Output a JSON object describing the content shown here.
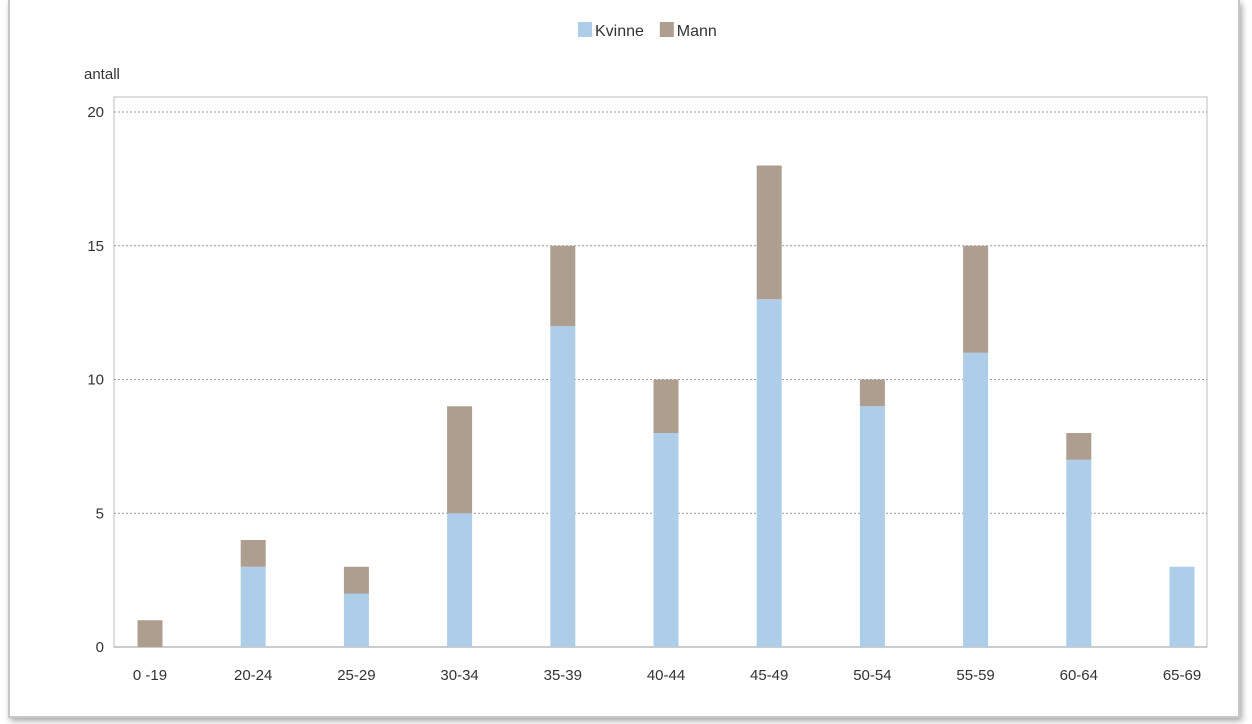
{
  "chart_data": {
    "type": "bar",
    "stacked": true,
    "ylabel": "antall",
    "xlabel": "",
    "ylim": [
      0,
      20
    ],
    "yticks": [
      0,
      5,
      10,
      15,
      20
    ],
    "grid": true,
    "legend_position": "top-center",
    "categories": [
      "0 -19",
      "20-24",
      "25-29",
      "30-34",
      "35-39",
      "40-44",
      "45-49",
      "50-54",
      "55-59",
      "60-64",
      "65-69"
    ],
    "series": [
      {
        "name": "Kvinne",
        "color": "#aecde9",
        "values": [
          0,
          3,
          2,
          5,
          12,
          8,
          13,
          9,
          11,
          7,
          3
        ]
      },
      {
        "name": "Mann",
        "color": "#ad9e8f",
        "values": [
          1,
          1,
          1,
          4,
          3,
          2,
          5,
          1,
          4,
          1,
          0
        ]
      }
    ]
  }
}
